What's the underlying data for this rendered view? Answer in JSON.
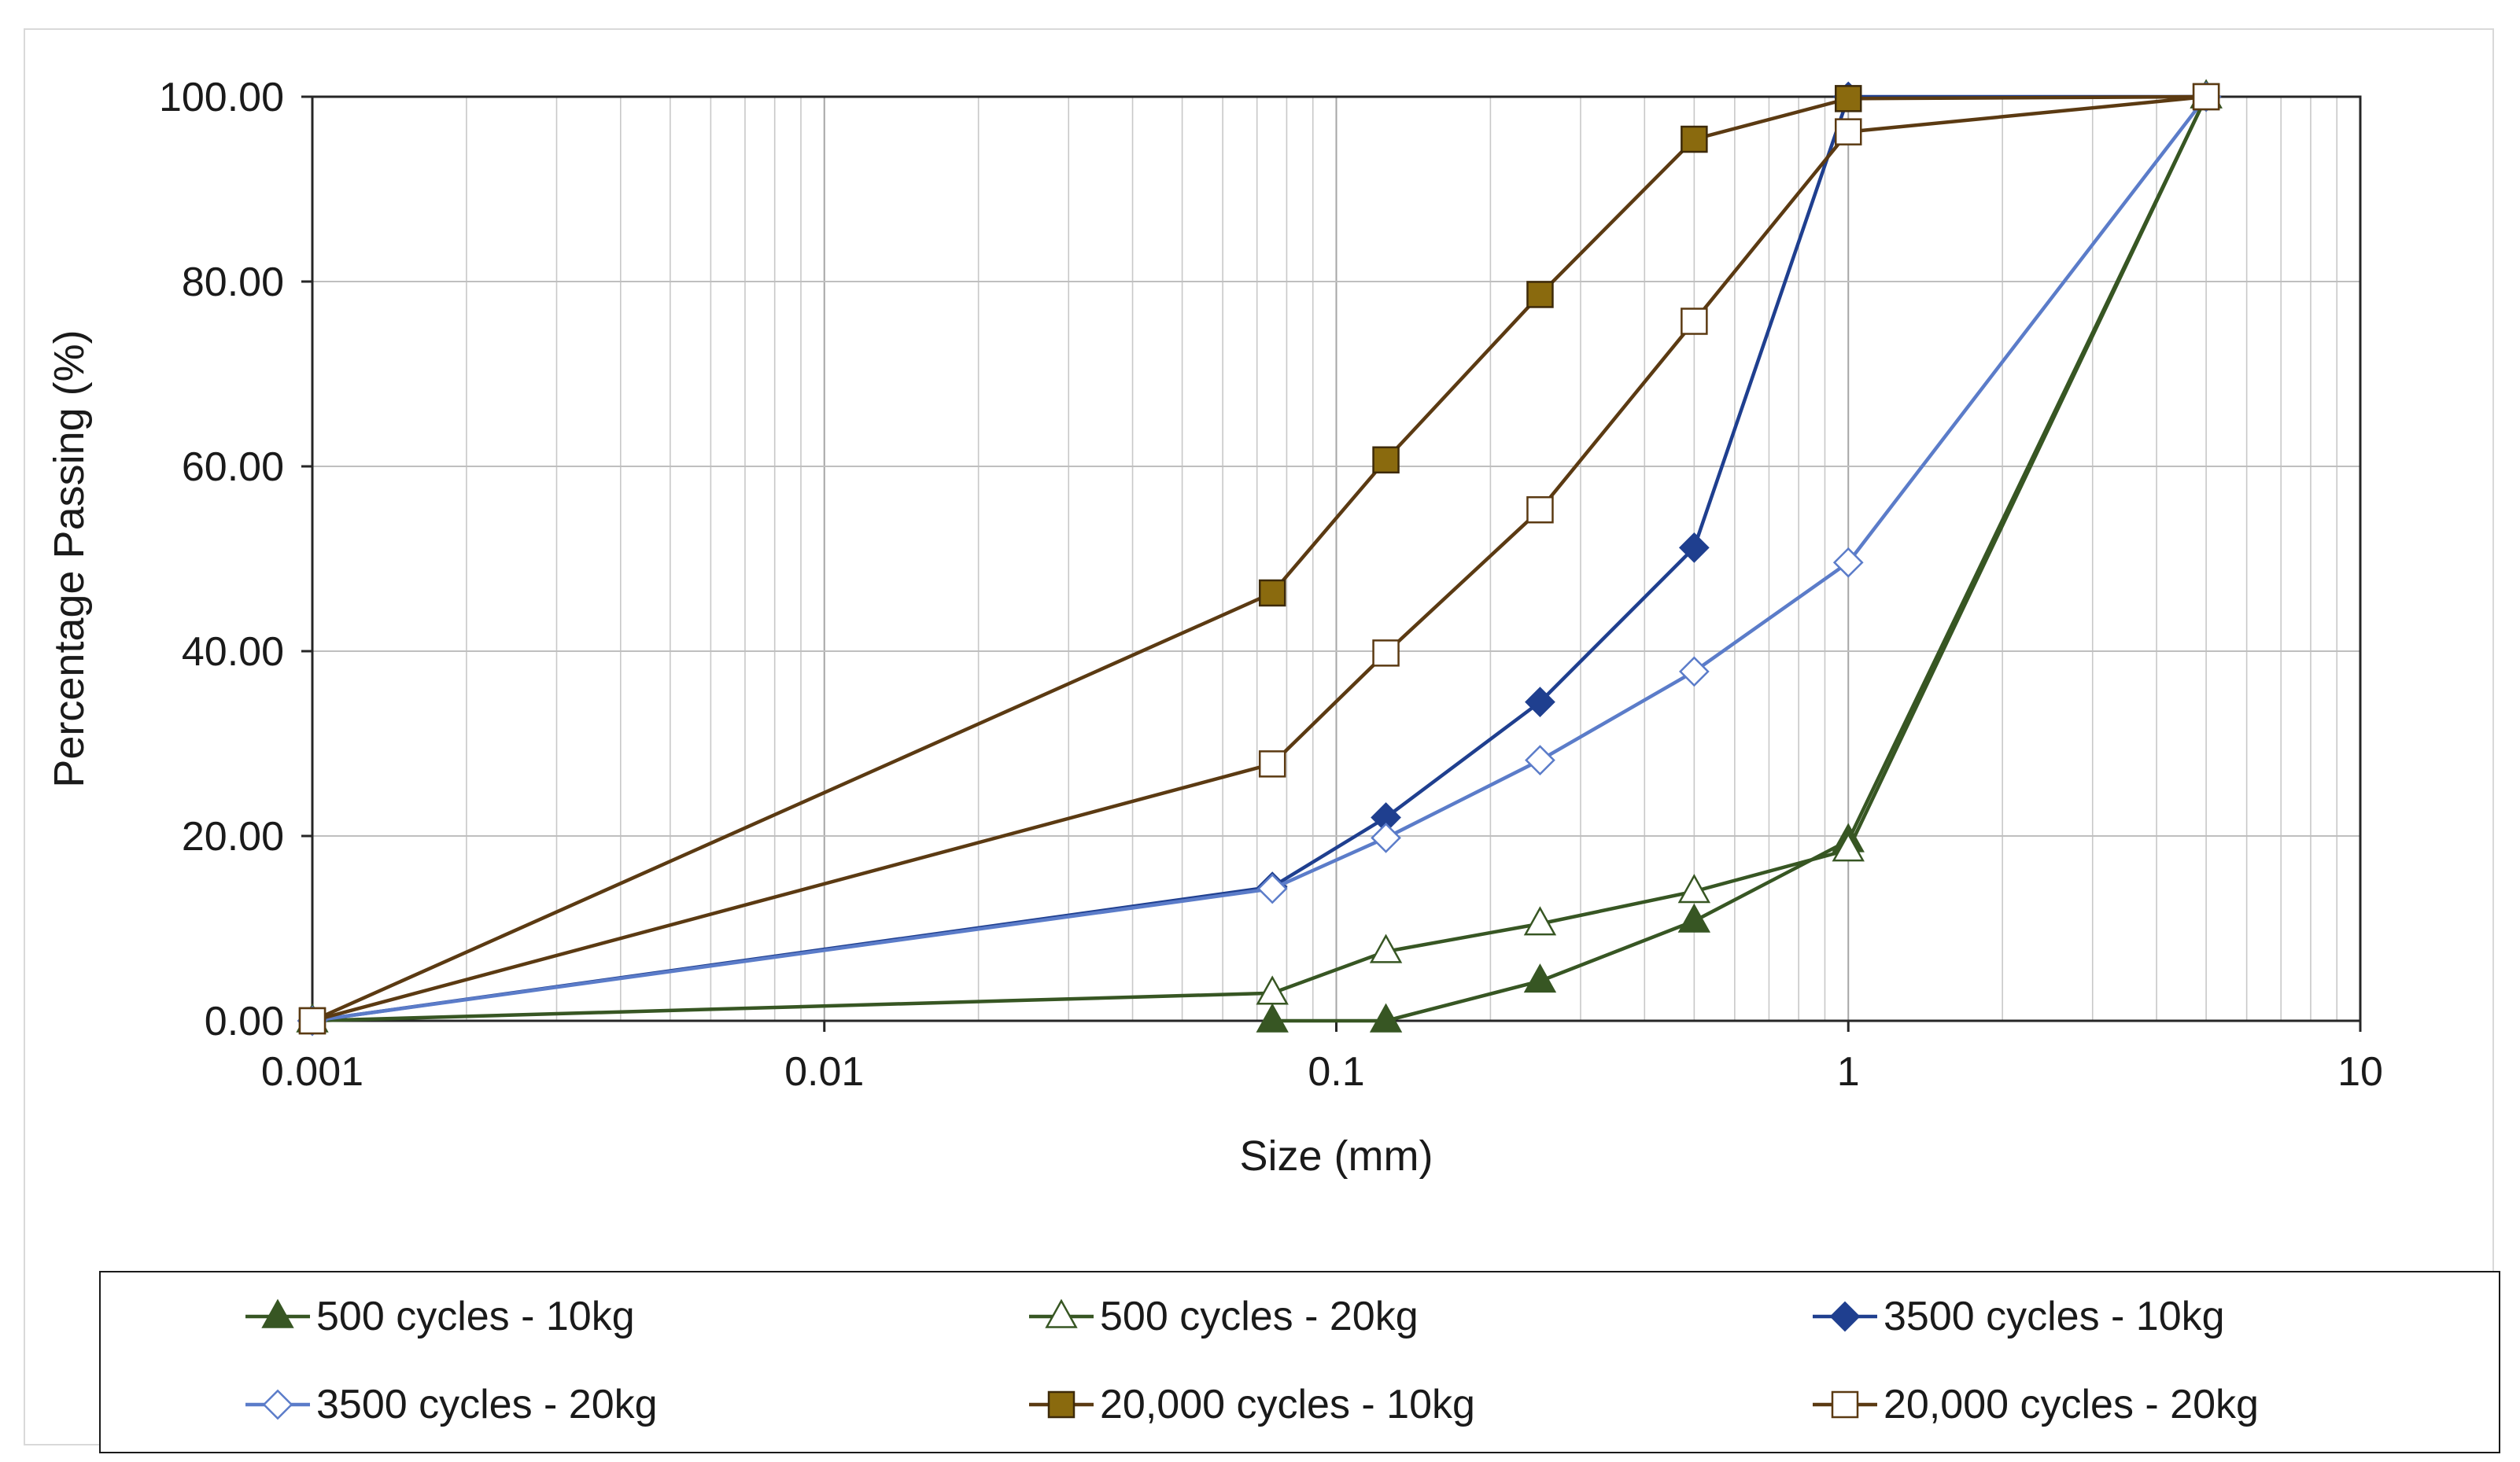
{
  "chart_data": {
    "type": "line",
    "title": "",
    "xlabel": "Size (mm)",
    "ylabel": "Percentage Passing (%)",
    "xscale": "log",
    "xlim": [
      0.001,
      10
    ],
    "ylim": [
      0,
      100
    ],
    "grid": true,
    "legend_position": "bottom",
    "x_ticks": [
      {
        "value": 0.001,
        "label": "0.001"
      },
      {
        "value": 0.01,
        "label": "0.01"
      },
      {
        "value": 0.1,
        "label": "0.1"
      },
      {
        "value": 1,
        "label": "1"
      },
      {
        "value": 10,
        "label": "10"
      }
    ],
    "y_ticks": [
      {
        "value": 0,
        "label": "0.00"
      },
      {
        "value": 20,
        "label": "20.00"
      },
      {
        "value": 40,
        "label": "40.00"
      },
      {
        "value": 60,
        "label": "60.00"
      },
      {
        "value": 80,
        "label": "80.00"
      },
      {
        "value": 100,
        "label": "100.00"
      }
    ],
    "series": [
      {
        "name": "500 cycles - 10kg",
        "color": "#375623",
        "marker": "triangle-filled",
        "points": [
          [
            0.075,
            0.0
          ],
          [
            0.125,
            0.0
          ],
          [
            0.25,
            4.3
          ],
          [
            0.5,
            10.8
          ],
          [
            1,
            19.5
          ],
          [
            5,
            100
          ]
        ]
      },
      {
        "name": "500 cycles - 20kg",
        "color": "#375623",
        "marker": "triangle-open",
        "points": [
          [
            0.001,
            0.0
          ],
          [
            0.075,
            3.0
          ],
          [
            0.125,
            7.5
          ],
          [
            0.25,
            10.5
          ],
          [
            0.5,
            14.0
          ],
          [
            1,
            18.5
          ],
          [
            5,
            100
          ]
        ]
      },
      {
        "name": "3500 cycles - 10kg",
        "color": "#1f3f8f",
        "marker": "diamond-filled",
        "points": [
          [
            0.001,
            0.0
          ],
          [
            0.075,
            14.5
          ],
          [
            0.125,
            22.0
          ],
          [
            0.25,
            34.5
          ],
          [
            0.5,
            51.2
          ],
          [
            1,
            100
          ],
          [
            5,
            100
          ]
        ]
      },
      {
        "name": "3500 cycles - 20kg",
        "color": "#5b7cc9",
        "marker": "diamond-open",
        "points": [
          [
            0.001,
            0.0
          ],
          [
            0.075,
            14.3
          ],
          [
            0.125,
            19.8
          ],
          [
            0.25,
            28.2
          ],
          [
            0.5,
            37.8
          ],
          [
            1,
            49.6
          ],
          [
            5,
            100
          ]
        ]
      },
      {
        "name": "20,000 cycles - 10kg",
        "color": "#5b3a12",
        "marker_fill": "#8a6a0e",
        "marker": "square-filled",
        "points": [
          [
            0.001,
            0.0
          ],
          [
            0.075,
            46.3
          ],
          [
            0.125,
            60.7
          ],
          [
            0.25,
            78.6
          ],
          [
            0.5,
            95.4
          ],
          [
            1,
            99.8
          ],
          [
            5,
            100
          ]
        ]
      },
      {
        "name": "20,000 cycles - 20kg",
        "color": "#5b3a12",
        "marker": "square-open",
        "points": [
          [
            0.001,
            0.0
          ],
          [
            0.075,
            27.8
          ],
          [
            0.125,
            39.8
          ],
          [
            0.25,
            55.3
          ],
          [
            0.5,
            75.7
          ],
          [
            1,
            96.2
          ],
          [
            5,
            100
          ]
        ]
      }
    ]
  }
}
